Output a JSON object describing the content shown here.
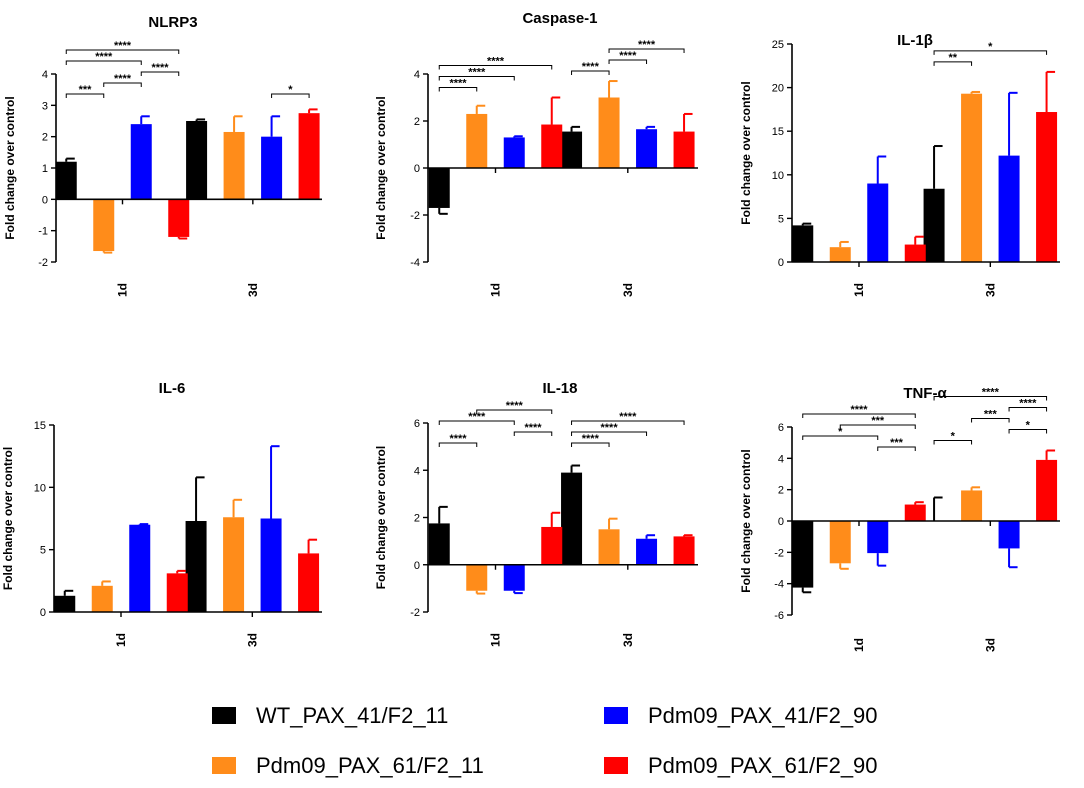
{
  "colors": {
    "WT_PAX_41/F2_11": "#000000",
    "Pdm09_PAX_41/F2_90": "#0000ff",
    "Pdm09_PAX_61/F2_11": "#ff8c1a",
    "Pdm09_PAX_61/F2_90": "#ff0000"
  },
  "chart_data": [
    {
      "type": "bar",
      "title": "NLRP3",
      "ylabel": "Fold change over control",
      "categories": [
        "1d",
        "3d"
      ],
      "ylim": [
        -2,
        4
      ],
      "yticks": [
        -2,
        -1,
        0,
        1,
        2,
        3,
        4
      ],
      "series": [
        {
          "name": "WT_PAX_41/F2_11",
          "values": [
            1.2,
            2.5
          ],
          "errors": [
            0.1,
            0.05
          ]
        },
        {
          "name": "Pdm09_PAX_61/F2_11",
          "values": [
            -1.65,
            2.15
          ],
          "errors": [
            0.05,
            0.5
          ]
        },
        {
          "name": "Pdm09_PAX_41/F2_90",
          "values": [
            2.4,
            2.0
          ],
          "errors": [
            0.25,
            0.65
          ]
        },
        {
          "name": "Pdm09_PAX_61/F2_90",
          "values": [
            -1.2,
            2.75
          ],
          "errors": [
            0.05,
            0.12
          ]
        }
      ],
      "significance": [
        {
          "cat": 0,
          "from": 0,
          "to": 3,
          "label": "****"
        },
        {
          "cat": 0,
          "from": 0,
          "to": 2,
          "label": "****"
        },
        {
          "cat": 0,
          "from": 0,
          "to": 1,
          "label": "***"
        },
        {
          "cat": 0,
          "from": 1,
          "to": 2,
          "label": "****"
        },
        {
          "cat": 0,
          "from": 2,
          "to": 3,
          "label": "****"
        },
        {
          "cat": 1,
          "from": 2,
          "to": 3,
          "label": "*"
        }
      ]
    },
    {
      "type": "bar",
      "title": "Caspase-1",
      "ylabel": "Fold change over control",
      "categories": [
        "1d",
        "3d"
      ],
      "ylim": [
        -4,
        4
      ],
      "yticks": [
        -4,
        -2,
        0,
        2,
        4
      ],
      "series": [
        {
          "name": "WT_PAX_41/F2_11",
          "values": [
            -1.7,
            1.55
          ],
          "errors": [
            0.25,
            0.2
          ]
        },
        {
          "name": "Pdm09_PAX_61/F2_11",
          "values": [
            2.3,
            3.0
          ],
          "errors": [
            0.35,
            0.7
          ]
        },
        {
          "name": "Pdm09_PAX_41/F2_90",
          "values": [
            1.3,
            1.65
          ],
          "errors": [
            0.05,
            0.1
          ]
        },
        {
          "name": "Pdm09_PAX_61/F2_90",
          "values": [
            1.85,
            1.55
          ],
          "errors": [
            1.15,
            0.75
          ]
        }
      ],
      "significance": [
        {
          "cat": 0,
          "from": 0,
          "to": 3,
          "label": "****"
        },
        {
          "cat": 0,
          "from": 0,
          "to": 2,
          "label": "****"
        },
        {
          "cat": 0,
          "from": 0,
          "to": 1,
          "label": "****"
        },
        {
          "cat": 1,
          "from": 1,
          "to": 3,
          "label": "****"
        },
        {
          "cat": 1,
          "from": 0,
          "to": 1,
          "label": "****"
        },
        {
          "cat": 1,
          "from": 1,
          "to": 2,
          "label": "****"
        }
      ]
    },
    {
      "type": "bar",
      "title": "IL-1β",
      "ylabel": "Fold change over control",
      "categories": [
        "1d",
        "3d"
      ],
      "ylim": [
        0,
        25
      ],
      "yticks": [
        0,
        5,
        10,
        15,
        20,
        25
      ],
      "series": [
        {
          "name": "WT_PAX_41/F2_11",
          "values": [
            4.2,
            8.4
          ],
          "errors": [
            0.2,
            4.9
          ]
        },
        {
          "name": "Pdm09_PAX_61/F2_11",
          "values": [
            1.7,
            19.3
          ],
          "errors": [
            0.6,
            0.2
          ]
        },
        {
          "name": "Pdm09_PAX_41/F2_90",
          "values": [
            9.0,
            12.2
          ],
          "errors": [
            3.1,
            7.2
          ]
        },
        {
          "name": "Pdm09_PAX_61/F2_90",
          "values": [
            2.0,
            17.2
          ],
          "errors": [
            0.9,
            4.6
          ]
        }
      ],
      "significance": [
        {
          "cat": 1,
          "from": 0,
          "to": 3,
          "label": "*"
        },
        {
          "cat": 1,
          "from": 0,
          "to": 1,
          "label": "**"
        }
      ]
    },
    {
      "type": "bar",
      "title": "IL-6",
      "ylabel": "Fold change over control",
      "categories": [
        "1d",
        "3d"
      ],
      "ylim": [
        0,
        15
      ],
      "yticks": [
        0,
        5,
        10,
        15
      ],
      "series": [
        {
          "name": "WT_PAX_41/F2_11",
          "values": [
            1.3,
            7.3
          ],
          "errors": [
            0.4,
            3.5
          ]
        },
        {
          "name": "Pdm09_PAX_61/F2_11",
          "values": [
            2.1,
            7.6
          ],
          "errors": [
            0.35,
            1.4
          ]
        },
        {
          "name": "Pdm09_PAX_41/F2_90",
          "values": [
            7.0,
            7.5
          ],
          "errors": [
            0.05,
            5.8
          ]
        },
        {
          "name": "Pdm09_PAX_61/F2_90",
          "values": [
            3.1,
            4.7
          ],
          "errors": [
            0.2,
            1.1
          ]
        }
      ],
      "significance": []
    },
    {
      "type": "bar",
      "title": "IL-18",
      "ylabel": "Fold change over control",
      "categories": [
        "1d",
        "3d"
      ],
      "ylim": [
        -2,
        6
      ],
      "yticks": [
        -2,
        0,
        2,
        4,
        6
      ],
      "series": [
        {
          "name": "WT_PAX_41/F2_11",
          "values": [
            1.75,
            3.9
          ],
          "errors": [
            0.7,
            0.3
          ]
        },
        {
          "name": "Pdm09_PAX_61/F2_11",
          "values": [
            -1.1,
            1.5
          ],
          "errors": [
            0.12,
            0.45
          ]
        },
        {
          "name": "Pdm09_PAX_41/F2_90",
          "values": [
            -1.1,
            1.1
          ],
          "errors": [
            0.1,
            0.15
          ]
        },
        {
          "name": "Pdm09_PAX_61/F2_90",
          "values": [
            1.6,
            1.2
          ],
          "errors": [
            0.6,
            0.05
          ]
        }
      ],
      "significance": [
        {
          "cat": 0,
          "from": 0,
          "to": 2,
          "label": "****"
        },
        {
          "cat": 0,
          "from": 0,
          "to": 1,
          "label": "****"
        },
        {
          "cat": 0,
          "from": 1,
          "to": 3,
          "label": "****"
        },
        {
          "cat": 0,
          "from": 2,
          "to": 3,
          "label": "****"
        },
        {
          "cat": 1,
          "from": 0,
          "to": 3,
          "label": "****"
        },
        {
          "cat": 1,
          "from": 0,
          "to": 2,
          "label": "****"
        },
        {
          "cat": 1,
          "from": 0,
          "to": 1,
          "label": "****"
        }
      ]
    },
    {
      "type": "bar",
      "title": "TNF-α",
      "ylabel": "Fold change over control",
      "categories": [
        "1d",
        "3d"
      ],
      "ylim": [
        -6,
        6
      ],
      "yticks": [
        -6,
        -4,
        -2,
        0,
        2,
        4,
        6
      ],
      "series": [
        {
          "name": "WT_PAX_41/F2_11",
          "values": [
            -4.25,
            0.0
          ],
          "errors": [
            0.3,
            1.5
          ]
        },
        {
          "name": "Pdm09_PAX_61/F2_11",
          "values": [
            -2.7,
            1.95
          ],
          "errors": [
            0.35,
            0.2
          ]
        },
        {
          "name": "Pdm09_PAX_41/F2_90",
          "values": [
            -2.05,
            -1.75
          ],
          "errors": [
            0.8,
            1.2
          ]
        },
        {
          "name": "Pdm09_PAX_61/F2_90",
          "values": [
            1.05,
            3.9
          ],
          "errors": [
            0.15,
            0.6
          ]
        }
      ],
      "significance": [
        {
          "cat": 0,
          "from": 0,
          "to": 3,
          "label": "****"
        },
        {
          "cat": 0,
          "from": 0,
          "to": 2,
          "label": "*"
        },
        {
          "cat": 0,
          "from": 1,
          "to": 3,
          "label": "***"
        },
        {
          "cat": 0,
          "from": 2,
          "to": 3,
          "label": "***"
        },
        {
          "cat": 1,
          "from": 0,
          "to": 3,
          "label": "****"
        },
        {
          "cat": 1,
          "from": 0,
          "to": 1,
          "label": "*"
        },
        {
          "cat": 1,
          "from": 2,
          "to": 3,
          "label": "*"
        },
        {
          "cat": 1,
          "from": 1,
          "to": 2,
          "label": "***"
        },
        {
          "cat": 1,
          "from": 2,
          "to": 3,
          "label": "****"
        }
      ]
    }
  ],
  "legend": {
    "items": [
      {
        "label": "WT_PAX_41/F2_11",
        "color": "#000000"
      },
      {
        "label": "Pdm09_PAX_41/F2_90",
        "color": "#0000ff"
      },
      {
        "label": "Pdm09_PAX_61/F2_11",
        "color": "#ff8c1a"
      },
      {
        "label": "Pdm09_PAX_61/F2_90",
        "color": "#ff0000"
      }
    ]
  }
}
